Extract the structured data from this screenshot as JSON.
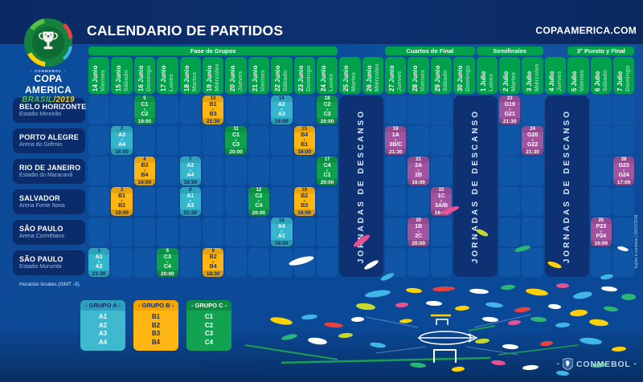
{
  "header": {
    "title": "CALENDARIO DE PARTIDOS",
    "website": "COPAAMERICA.COM",
    "logo": {
      "federation": "- CONMEBOL -",
      "competition": "COPA AMERICA",
      "edition_brasil": "BRASIL",
      "edition_year": "/2019"
    }
  },
  "phases": [
    {
      "label": "Fase de Grupos",
      "col_start": 1,
      "col_span": 11
    },
    {
      "label": "Cuartos de Final",
      "col_start": 14,
      "col_span": 4
    },
    {
      "label": "Semifinales",
      "col_start": 18,
      "col_span": 3
    },
    {
      "label": "3° Puesto y Final",
      "col_start": 22,
      "col_span": 3
    }
  ],
  "dates": [
    {
      "day": "14 Junio",
      "weekday": "Viernes"
    },
    {
      "day": "15 Junio",
      "weekday": "Sábado"
    },
    {
      "day": "16 Junio",
      "weekday": "Domingo"
    },
    {
      "day": "17 Junio",
      "weekday": "Lunes"
    },
    {
      "day": "18 Junio",
      "weekday": "Martes"
    },
    {
      "day": "19 Junio",
      "weekday": "Miércoles"
    },
    {
      "day": "20 Junio",
      "weekday": "Jueves"
    },
    {
      "day": "21 Junio",
      "weekday": "Viernes"
    },
    {
      "day": "22 Junio",
      "weekday": "Sábado"
    },
    {
      "day": "23 Junio",
      "weekday": "Domingo"
    },
    {
      "day": "24 Junio",
      "weekday": "Lunes"
    },
    {
      "day": "25 Junio",
      "weekday": "Martes"
    },
    {
      "day": "26 Junio",
      "weekday": "Miércoles"
    },
    {
      "day": "27 Junio",
      "weekday": "Jueves"
    },
    {
      "day": "28 Junio",
      "weekday": "Viernes"
    },
    {
      "day": "29 Junio",
      "weekday": "Sábado"
    },
    {
      "day": "30 Junio",
      "weekday": "Domingo"
    },
    {
      "day": "1 Julio",
      "weekday": "Lunes"
    },
    {
      "day": "2 Julio",
      "weekday": "Martes"
    },
    {
      "day": "3 Julio",
      "weekday": "Miércoles"
    },
    {
      "day": "4 Julio",
      "weekday": "Jueves"
    },
    {
      "day": "5 Julio",
      "weekday": "Viernes"
    },
    {
      "day": "6 Julio",
      "weekday": "Sábado"
    },
    {
      "day": "7 Julio",
      "weekday": "Domingo"
    }
  ],
  "rest_periods": {
    "label": "JORNADAS DE DESCANSO",
    "column_spans": [
      {
        "col_start": 12,
        "col_span": 2
      },
      {
        "col_start": 17,
        "col_span": 2
      },
      {
        "col_start": 21,
        "col_span": 2
      }
    ]
  },
  "venues": [
    {
      "city": "BELO HORIZONTE",
      "stadium": "Estadio Mineirão"
    },
    {
      "city": "PORTO ALEGRE",
      "stadium": "Arena do Grêmio"
    },
    {
      "city": "RIO DE JANEIRO",
      "stadium": "Estadio do Maracanã"
    },
    {
      "city": "SALVADOR",
      "stadium": "Arena Fonte Nova"
    },
    {
      "city": "SÃO PAULO",
      "stadium": "Arena Corinthians"
    },
    {
      "city": "SÃO PAULO",
      "stadium": "Estadio Morumbi"
    }
  ],
  "match_separator": "v",
  "matches": [
    {
      "venue": 0,
      "col": 3,
      "num": "5",
      "home": "C1",
      "away": "C2",
      "time": "19:00",
      "group": "C"
    },
    {
      "venue": 0,
      "col": 6,
      "num": "10",
      "home": "B1",
      "away": "B3",
      "time": "21:30",
      "group": "B"
    },
    {
      "venue": 0,
      "col": 9,
      "num": "14",
      "home": "A2",
      "away": "A3",
      "time": "16:00",
      "group": "A"
    },
    {
      "venue": 0,
      "col": 11,
      "num": "18",
      "home": "C2",
      "away": "C3",
      "time": "20:00",
      "group": "C"
    },
    {
      "venue": 0,
      "col": 19,
      "num": "23",
      "home": "G19",
      "away": "G21",
      "time": "21:30",
      "group": "F"
    },
    {
      "venue": 1,
      "col": 2,
      "num": "2",
      "home": "A3",
      "away": "A4",
      "time": "16:00",
      "group": "A"
    },
    {
      "venue": 1,
      "col": 7,
      "num": "11",
      "home": "C1",
      "away": "C3",
      "time": "20:00",
      "group": "C"
    },
    {
      "venue": 1,
      "col": 10,
      "num": "15",
      "home": "B4",
      "away": "B1",
      "time": "16:00",
      "group": "B"
    },
    {
      "venue": 1,
      "col": 14,
      "num": "19",
      "home": "1A",
      "away": "3B/C",
      "time": "21:30",
      "group": "F"
    },
    {
      "venue": 1,
      "col": 20,
      "num": "24",
      "home": "G20",
      "away": "G22",
      "time": "21:30",
      "group": "F"
    },
    {
      "venue": 2,
      "col": 3,
      "num": "4",
      "home": "B3",
      "away": "B4",
      "time": "16:00",
      "group": "B"
    },
    {
      "venue": 2,
      "col": 5,
      "num": "7",
      "home": "A2",
      "away": "A4",
      "time": "18:30",
      "group": "A"
    },
    {
      "venue": 2,
      "col": 11,
      "num": "17",
      "home": "C4",
      "away": "C1",
      "time": "20:00",
      "group": "C"
    },
    {
      "venue": 2,
      "col": 15,
      "num": "21",
      "home": "2A",
      "away": "2B",
      "time": "16:00",
      "group": "F"
    },
    {
      "venue": 2,
      "col": 24,
      "num": "26",
      "home": "G23",
      "away": "G24",
      "time": "17:00",
      "group": "F"
    },
    {
      "venue": 3,
      "col": 2,
      "num": "3",
      "home": "B1",
      "away": "B2",
      "time": "19:00",
      "group": "B"
    },
    {
      "venue": 3,
      "col": 5,
      "num": "8",
      "home": "A1",
      "away": "A3",
      "time": "21:30",
      "group": "A"
    },
    {
      "venue": 3,
      "col": 8,
      "num": "12",
      "home": "C2",
      "away": "C4",
      "time": "20:00",
      "group": "C"
    },
    {
      "venue": 3,
      "col": 10,
      "num": "16",
      "home": "B2",
      "away": "B3",
      "time": "16:00",
      "group": "B"
    },
    {
      "venue": 3,
      "col": 16,
      "num": "22",
      "home": "1C",
      "away": "3A/B",
      "time": "16:00",
      "group": "F"
    },
    {
      "venue": 4,
      "col": 9,
      "num": "13",
      "home": "A4",
      "away": "A1",
      "time": "16:00",
      "group": "A"
    },
    {
      "venue": 4,
      "col": 15,
      "num": "20",
      "home": "1B",
      "away": "2C",
      "time": "20:00",
      "group": "F"
    },
    {
      "venue": 4,
      "col": 23,
      "num": "25",
      "home": "P23",
      "away": "P24",
      "time": "16:00",
      "group": "F"
    },
    {
      "venue": 5,
      "col": 1,
      "num": "1",
      "home": "A1",
      "away": "A2",
      "time": "21:30",
      "group": "A"
    },
    {
      "venue": 5,
      "col": 4,
      "num": "6",
      "home": "C3",
      "away": "C4",
      "time": "20:00",
      "group": "C"
    },
    {
      "venue": 5,
      "col": 6,
      "num": "9",
      "home": "B2",
      "away": "B4",
      "time": "18:30",
      "group": "B"
    }
  ],
  "legend": [
    {
      "title": "- GRUPO A -",
      "teams": [
        "A1",
        "A2",
        "A3",
        "A4"
      ],
      "header_color": "#2D9FBC",
      "body_color": "#3FB9CE",
      "header_text": "#0D2D6B",
      "item_text": "#FFFFFF"
    },
    {
      "title": "- GRUPO B -",
      "teams": [
        "B1",
        "B2",
        "B3",
        "B4"
      ],
      "header_color": "#F5A300",
      "body_color": "#FFB612",
      "header_text": "#0D2D6B",
      "item_text": "#0D2D6B"
    },
    {
      "title": "- GRUPO C -",
      "teams": [
        "C1",
        "C2",
        "C3",
        "C4"
      ],
      "header_color": "#0B8E43",
      "body_color": "#12A352",
      "header_text": "#FFFFFF",
      "item_text": "#FFFFFF"
    }
  ],
  "notes": {
    "local_time": "Horarios locales (GMT -3).",
    "disclaimer": "Sujeto a cambios | 18/12/2018."
  },
  "footer": {
    "brand": "CONMEBOL",
    "dash": "-"
  },
  "colors": {
    "group_a": "#35B6CC",
    "group_b": "#FFB612",
    "group_c": "#0FA04C",
    "knockout": "#A3549F",
    "phase_green": "#00A14B",
    "rest_navy": "#0D3173",
    "navy_text": "#0D2D6B"
  }
}
